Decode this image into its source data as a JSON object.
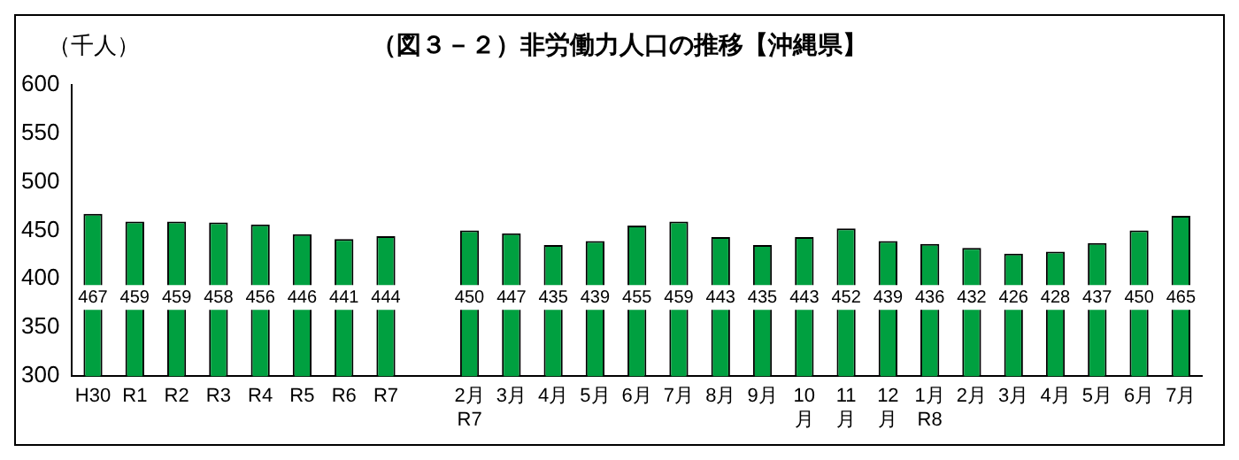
{
  "chart_data": {
    "type": "bar",
    "title": "（図３－２）非労働力人口の推移【沖縄県】",
    "ylabel": "（千人）",
    "categories": [
      "H30",
      "R1",
      "R2",
      "R3",
      "R4",
      "R5",
      "R6",
      "R7",
      null,
      "2月\nR7",
      "3月",
      "4月",
      "5月",
      "6月",
      "7月",
      "8月",
      "9月",
      "10\n月",
      "11\n月",
      "12\n月",
      "1月\nR8",
      "2月",
      "3月",
      "4月",
      "5月",
      "6月",
      "7月"
    ],
    "values": [
      467,
      459,
      459,
      458,
      456,
      446,
      441,
      444,
      null,
      450,
      447,
      435,
      439,
      455,
      459,
      443,
      435,
      443,
      452,
      439,
      436,
      432,
      426,
      428,
      437,
      450,
      465
    ],
    "color": "#00a040",
    "data_labels": true,
    "ylim": [
      300,
      600
    ],
    "yticks": [
      300,
      350,
      400,
      450,
      500,
      550,
      600
    ],
    "grid": false,
    "legend": false
  }
}
